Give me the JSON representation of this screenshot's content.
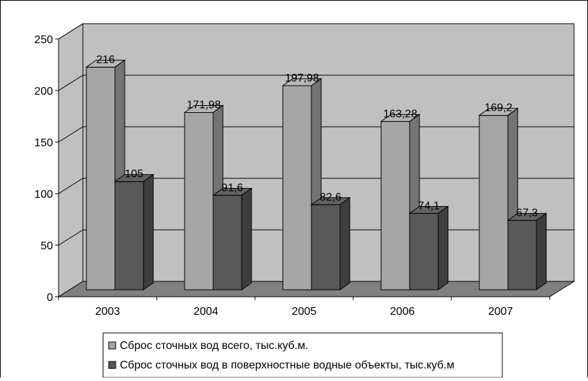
{
  "chart_data": {
    "type": "bar",
    "title": "",
    "xlabel": "",
    "ylabel": "",
    "categories": [
      "2003",
      "2004",
      "2005",
      "2006",
      "2007"
    ],
    "series": [
      {
        "name": "Сброс сточных вод всего, тыс.куб.м.",
        "values": [
          216,
          171.98,
          197.98,
          163.28,
          169.2
        ],
        "labels": [
          "216",
          "171,98",
          "197,98",
          "163,28",
          "169,2"
        ],
        "color": "#a6a6a6"
      },
      {
        "name": "Сброс сточных вод в поверхностные водные объекты, тыс.куб.м",
        "values": [
          105,
          91.6,
          82.6,
          74.1,
          67.3
        ],
        "labels": [
          "105",
          "91,6",
          "82,6",
          "74,1",
          "67,3"
        ],
        "color": "#595959"
      }
    ],
    "ylim": [
      0,
      250
    ],
    "yticks": [
      0,
      50,
      100,
      150,
      200,
      250
    ],
    "grid": true,
    "style": "3d",
    "wall_color": "#c0c0c0",
    "floor_color": "#808080",
    "legend_position": "bottom"
  }
}
